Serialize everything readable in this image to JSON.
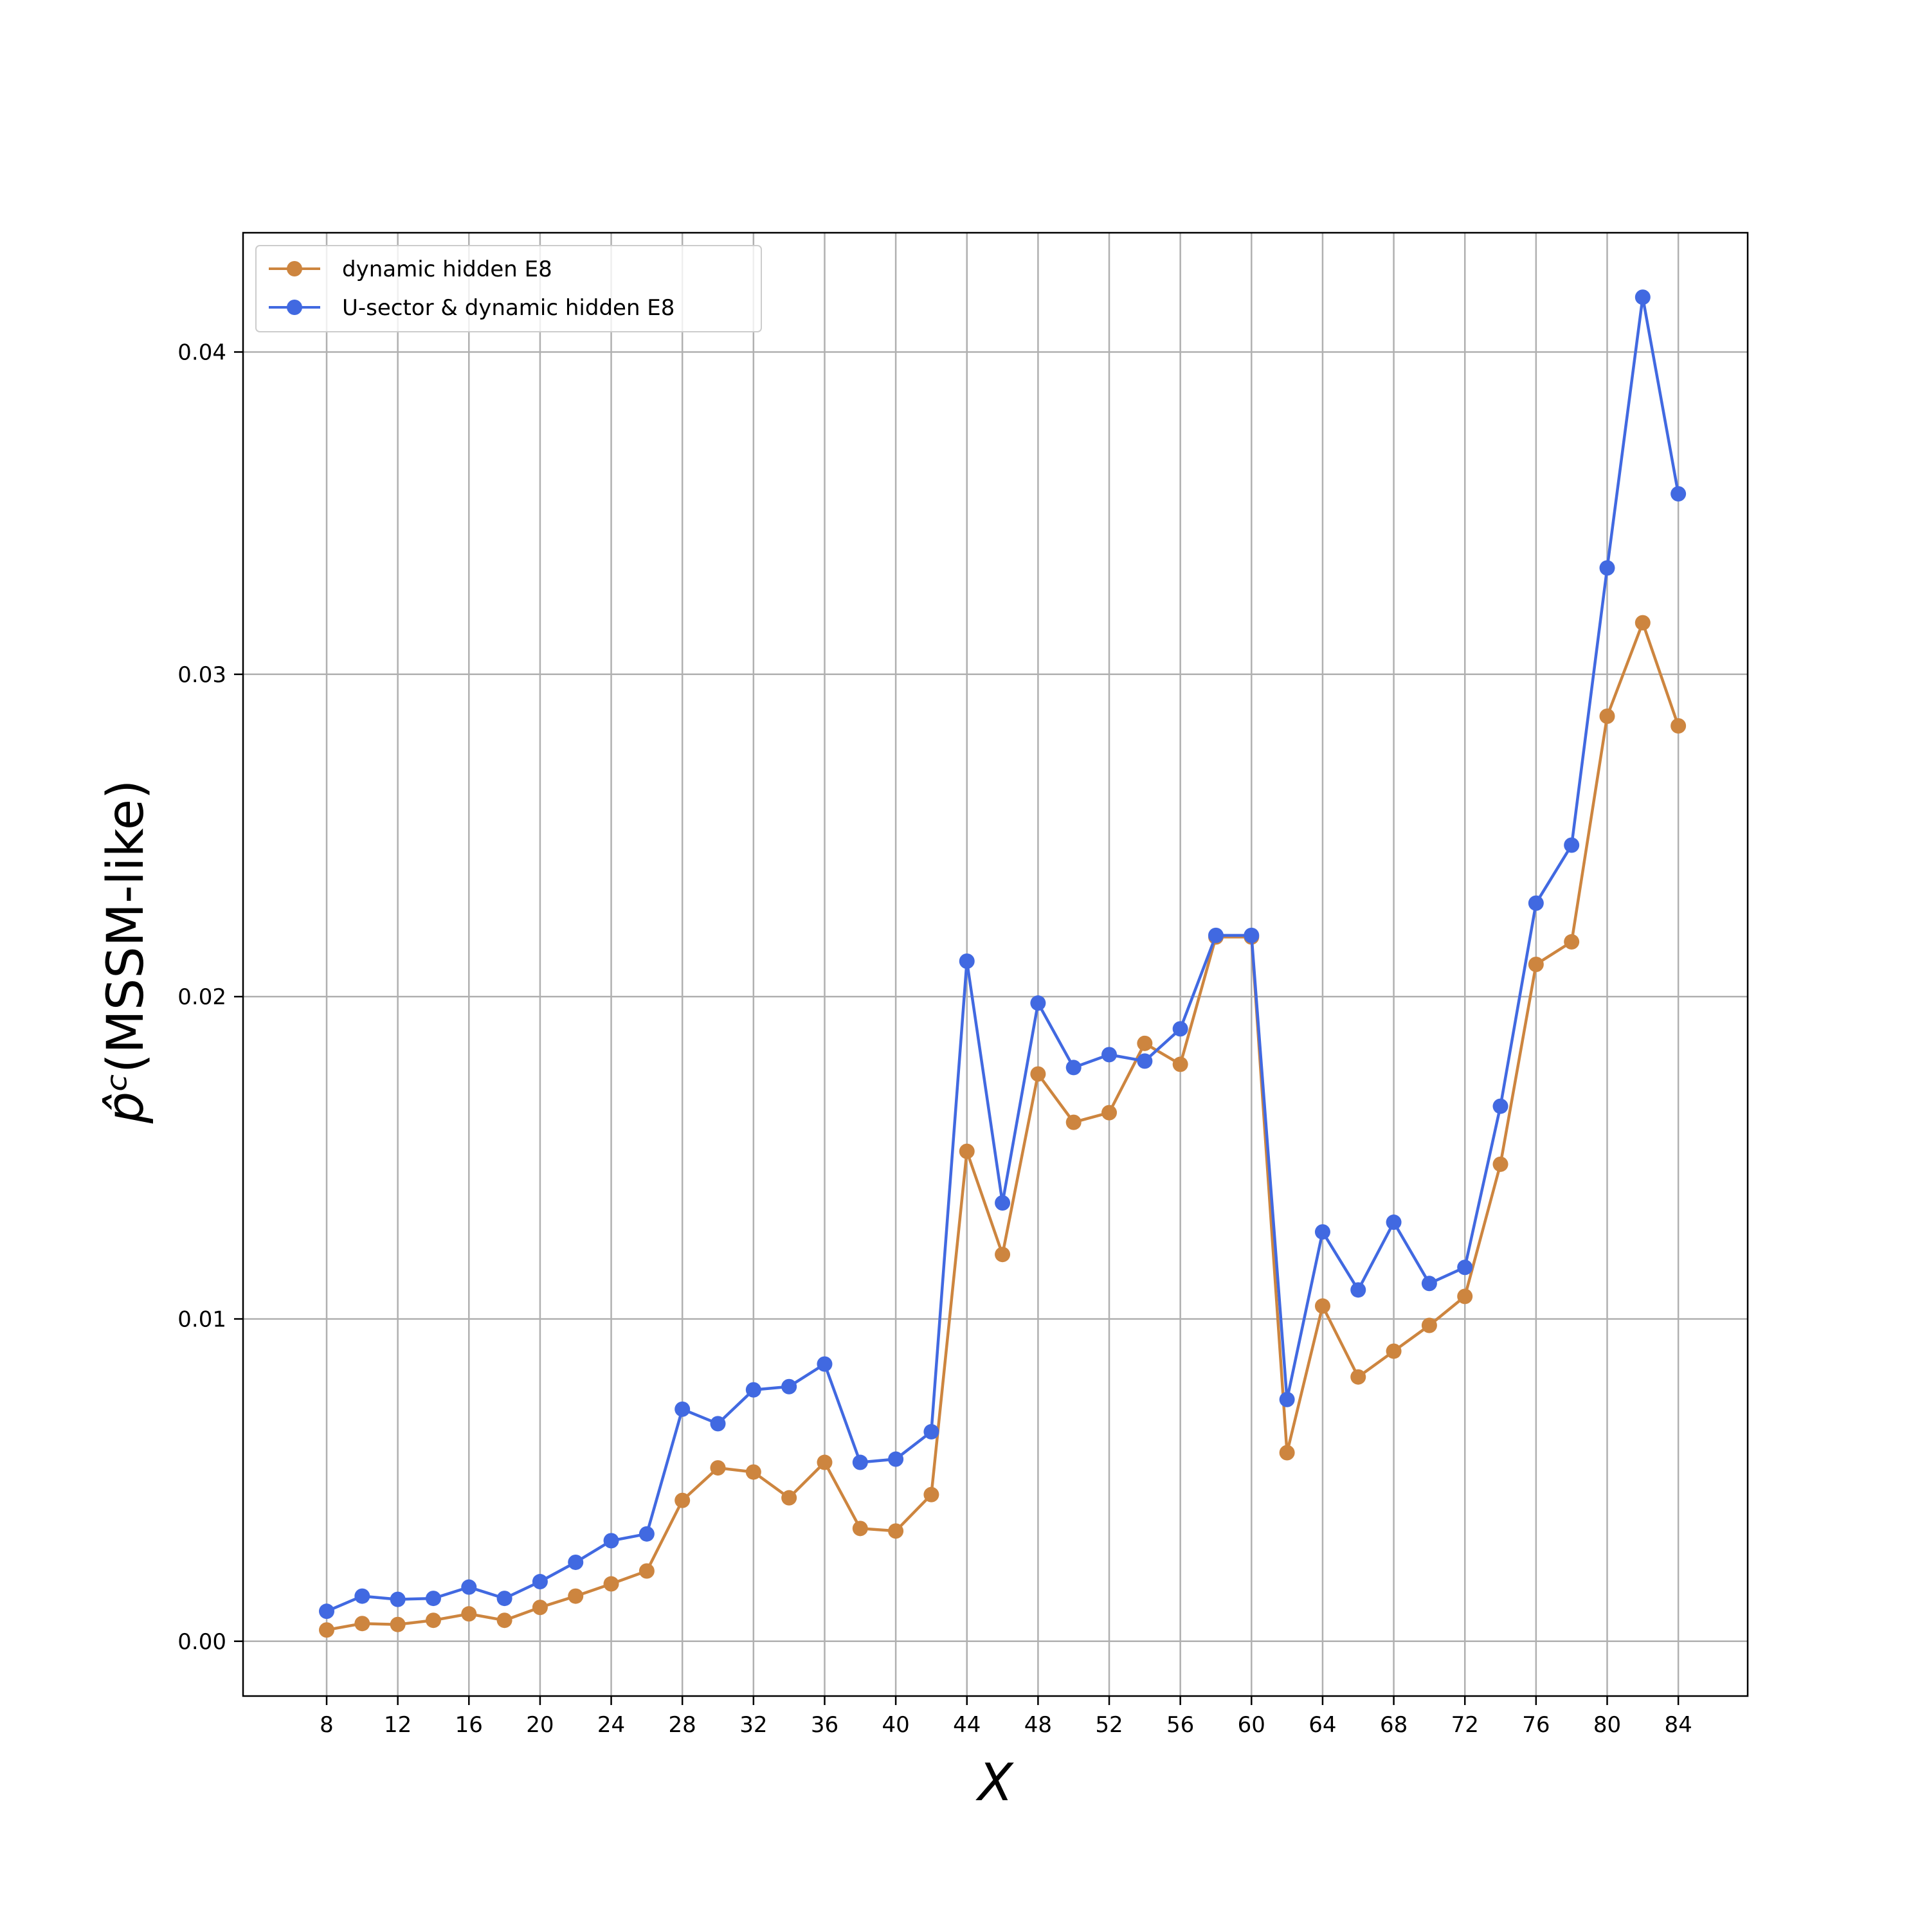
{
  "chart_data": {
    "type": "line",
    "xlabel": "X",
    "ylabel": "(MSSM-like)",
    "ylabel_symbol": "p̂ᶜ",
    "xlim": [
      3.3,
      87.9
    ],
    "ylim": [
      -0.0017,
      0.0437
    ],
    "x_ticks": [
      8,
      12,
      16,
      20,
      24,
      28,
      32,
      36,
      40,
      44,
      48,
      52,
      56,
      60,
      64,
      68,
      72,
      76,
      80,
      84
    ],
    "x_tick_labels": [
      "8",
      "12",
      "16",
      "20",
      "24",
      "28",
      "32",
      "36",
      "40",
      "44",
      "48",
      "52",
      "56",
      "60",
      "64",
      "68",
      "72",
      "76",
      "80",
      "84"
    ],
    "y_ticks": [
      0.0,
      0.01,
      0.02,
      0.03,
      0.04
    ],
    "y_tick_labels": [
      "0.00",
      "0.01",
      "0.02",
      "0.03",
      "0.04"
    ],
    "grid": true,
    "legend_position": "top-left",
    "x": [
      8,
      10,
      12,
      14,
      16,
      18,
      20,
      22,
      24,
      26,
      28,
      30,
      32,
      34,
      36,
      38,
      40,
      42,
      44,
      46,
      48,
      50,
      52,
      54,
      56,
      58,
      60,
      62,
      64,
      66,
      68,
      70,
      72,
      74,
      76,
      78,
      80,
      82,
      84
    ],
    "series": [
      {
        "name": "dynamic hidden E8",
        "color": "#cd853f",
        "values": [
          0.00035,
          0.00055,
          0.00052,
          0.00065,
          0.00085,
          0.00065,
          0.00105,
          0.0014,
          0.00178,
          0.00218,
          0.00437,
          0.00538,
          0.00525,
          0.00445,
          0.00555,
          0.0035,
          0.00342,
          0.00455,
          0.0152,
          0.012,
          0.0176,
          0.0161,
          0.0164,
          0.01855,
          0.0179,
          0.02185,
          0.02185,
          0.00585,
          0.0104,
          0.0082,
          0.009,
          0.0098,
          0.0107,
          0.0148,
          0.021,
          0.0217,
          0.0287,
          0.0316,
          0.0284
        ]
      },
      {
        "name": "U-sector & dynamic hidden E8",
        "color": "#4169e1",
        "values": [
          0.00093,
          0.0014,
          0.0013,
          0.00133,
          0.00168,
          0.00133,
          0.00185,
          0.00245,
          0.00312,
          0.00333,
          0.0072,
          0.00675,
          0.0078,
          0.0079,
          0.0086,
          0.00555,
          0.00565,
          0.0065,
          0.0211,
          0.0136,
          0.0198,
          0.0178,
          0.0182,
          0.018,
          0.019,
          0.0219,
          0.0219,
          0.0075,
          0.0127,
          0.0109,
          0.013,
          0.0111,
          0.0116,
          0.0166,
          0.0229,
          0.0247,
          0.0333,
          0.0417,
          0.0356
        ]
      }
    ]
  }
}
